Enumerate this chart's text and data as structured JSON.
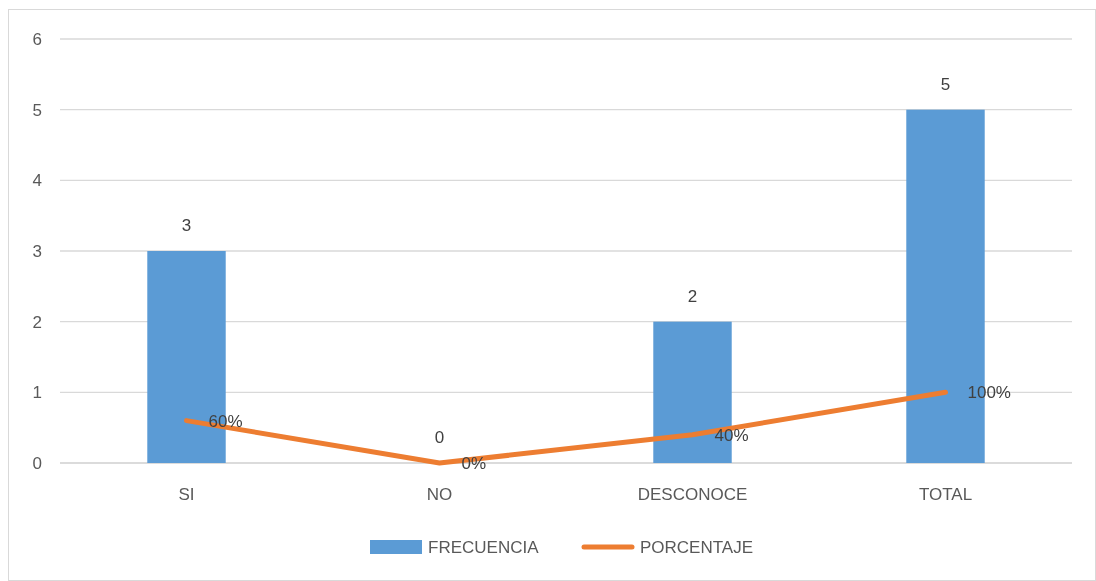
{
  "chart_data": {
    "type": "bar",
    "categories": [
      "SI",
      "NO",
      "DESCONOCE",
      "TOTAL"
    ],
    "series": [
      {
        "name": "FRECUENCIA",
        "color": "#5b9bd5",
        "values": [
          3,
          0,
          2,
          5
        ],
        "value_labels": [
          "3",
          "0",
          "2",
          "5"
        ]
      },
      {
        "name": "PORCENTAJE",
        "type": "line",
        "color": "#ed7d31",
        "values": [
          0.6,
          0,
          0.4,
          1
        ],
        "value_labels": [
          "60%",
          "0%",
          "40%",
          "100%"
        ]
      }
    ],
    "ylim": [
      0,
      6
    ],
    "yticks": [
      0,
      1,
      2,
      3,
      4,
      5,
      6
    ],
    "grid": "y",
    "legend": "bottom"
  }
}
